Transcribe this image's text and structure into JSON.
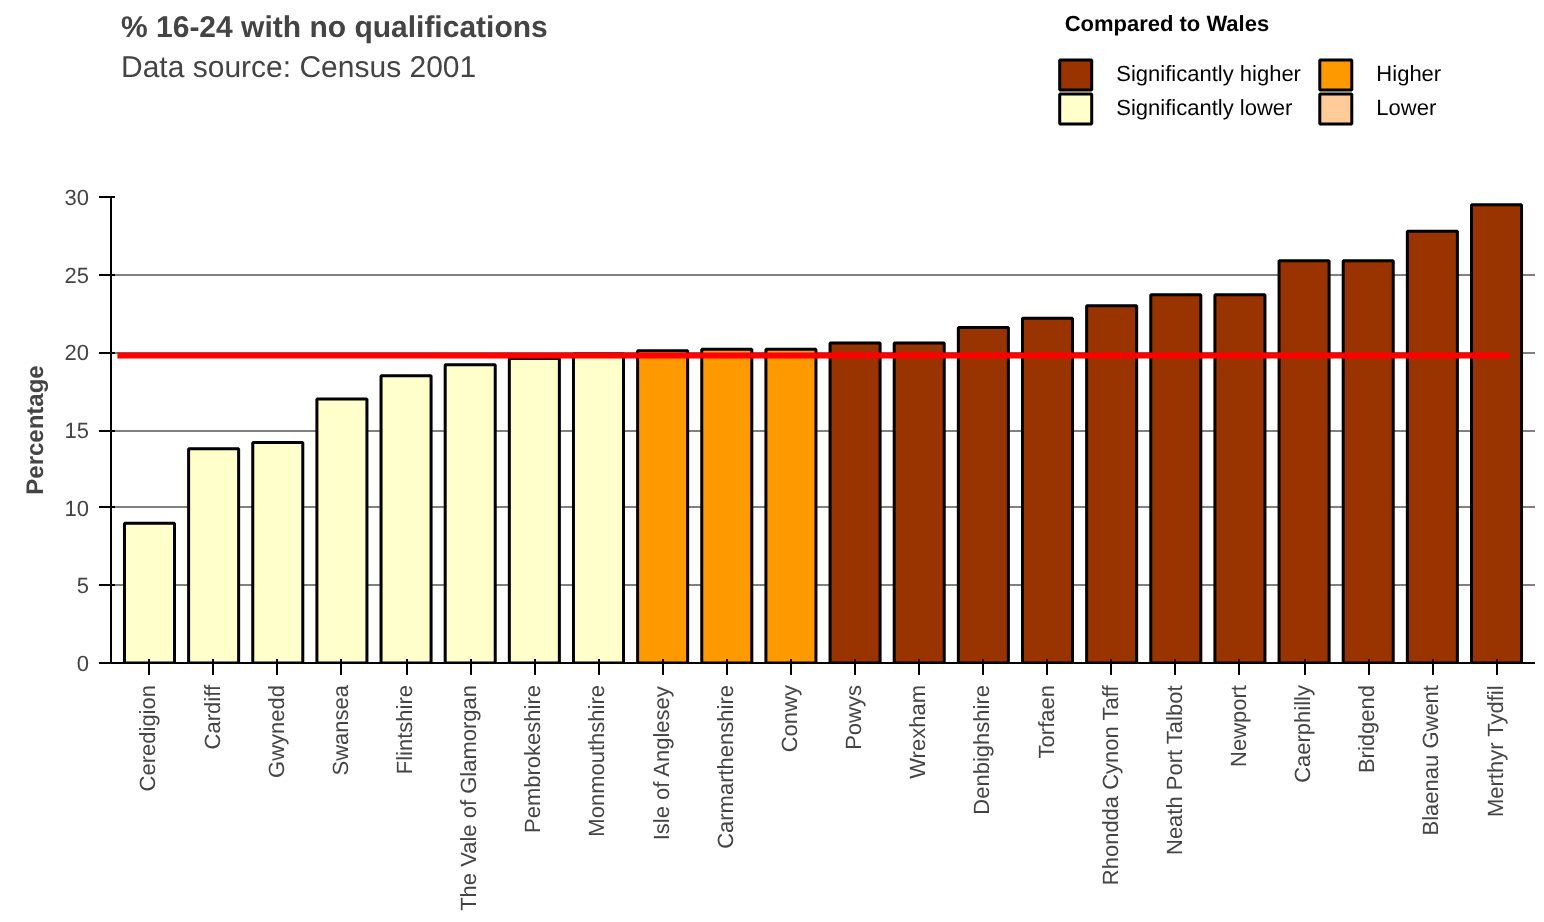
{
  "chart_data": {
    "type": "bar",
    "title": "% 16-24 with no qualifications",
    "subtitle": "Data source: Census 2001",
    "ylabel": "Percentage",
    "legend_title": "Compared to Wales",
    "categories": [
      "Ceredigion",
      "Cardiff",
      "Gwynedd",
      "Swansea",
      "Flintshire",
      "The Vale of Glamorgan",
      "Pembrokeshire",
      "Monmouthshire",
      "Isle of Anglesey",
      "Carmarthenshire",
      "Conwy",
      "Powys",
      "Wrexham",
      "Denbighshire",
      "Torfaen",
      "Rhondda Cynon Taff",
      "Neath Port Talbot",
      "Newport",
      "Caerphilly",
      "Bridgend",
      "Blaenau Gwent",
      "Merthyr Tydfil"
    ],
    "series": [
      {
        "name": "Significantly higher",
        "color": "#993300",
        "values": [
          null,
          null,
          null,
          null,
          null,
          null,
          null,
          null,
          null,
          null,
          null,
          20.6,
          20.6,
          21.6,
          22.2,
          23.0,
          23.7,
          23.7,
          25.9,
          25.9,
          27.8,
          29.5
        ]
      },
      {
        "name": "Significantly lower",
        "color": "#ffffcc",
        "values": [
          9.0,
          13.8,
          14.2,
          17.0,
          18.5,
          19.2,
          19.6,
          19.9,
          null,
          null,
          null,
          null,
          null,
          null,
          null,
          null,
          null,
          null,
          null,
          null,
          null,
          null
        ]
      },
      {
        "name": "Higher",
        "color": "#ff9900",
        "values": [
          null,
          null,
          null,
          null,
          null,
          null,
          null,
          null,
          20.1,
          20.2,
          20.2,
          null,
          null,
          null,
          null,
          null,
          null,
          null,
          null,
          null,
          null,
          null
        ]
      },
      {
        "name": "Lower",
        "color": "#ffcc99",
        "values": [
          null,
          null,
          null,
          null,
          null,
          null,
          null,
          null,
          null,
          null,
          null,
          null,
          null,
          null,
          null,
          null,
          null,
          null,
          null,
          null,
          null,
          null
        ]
      }
    ],
    "ylim": [
      0,
      30
    ],
    "yticks": [
      0,
      5,
      10,
      15,
      20,
      25,
      30
    ],
    "grid": "y",
    "legend": "top right",
    "ref_lines": [
      {
        "axis": "y",
        "value": 19.8,
        "color": "#ff0000"
      }
    ]
  }
}
